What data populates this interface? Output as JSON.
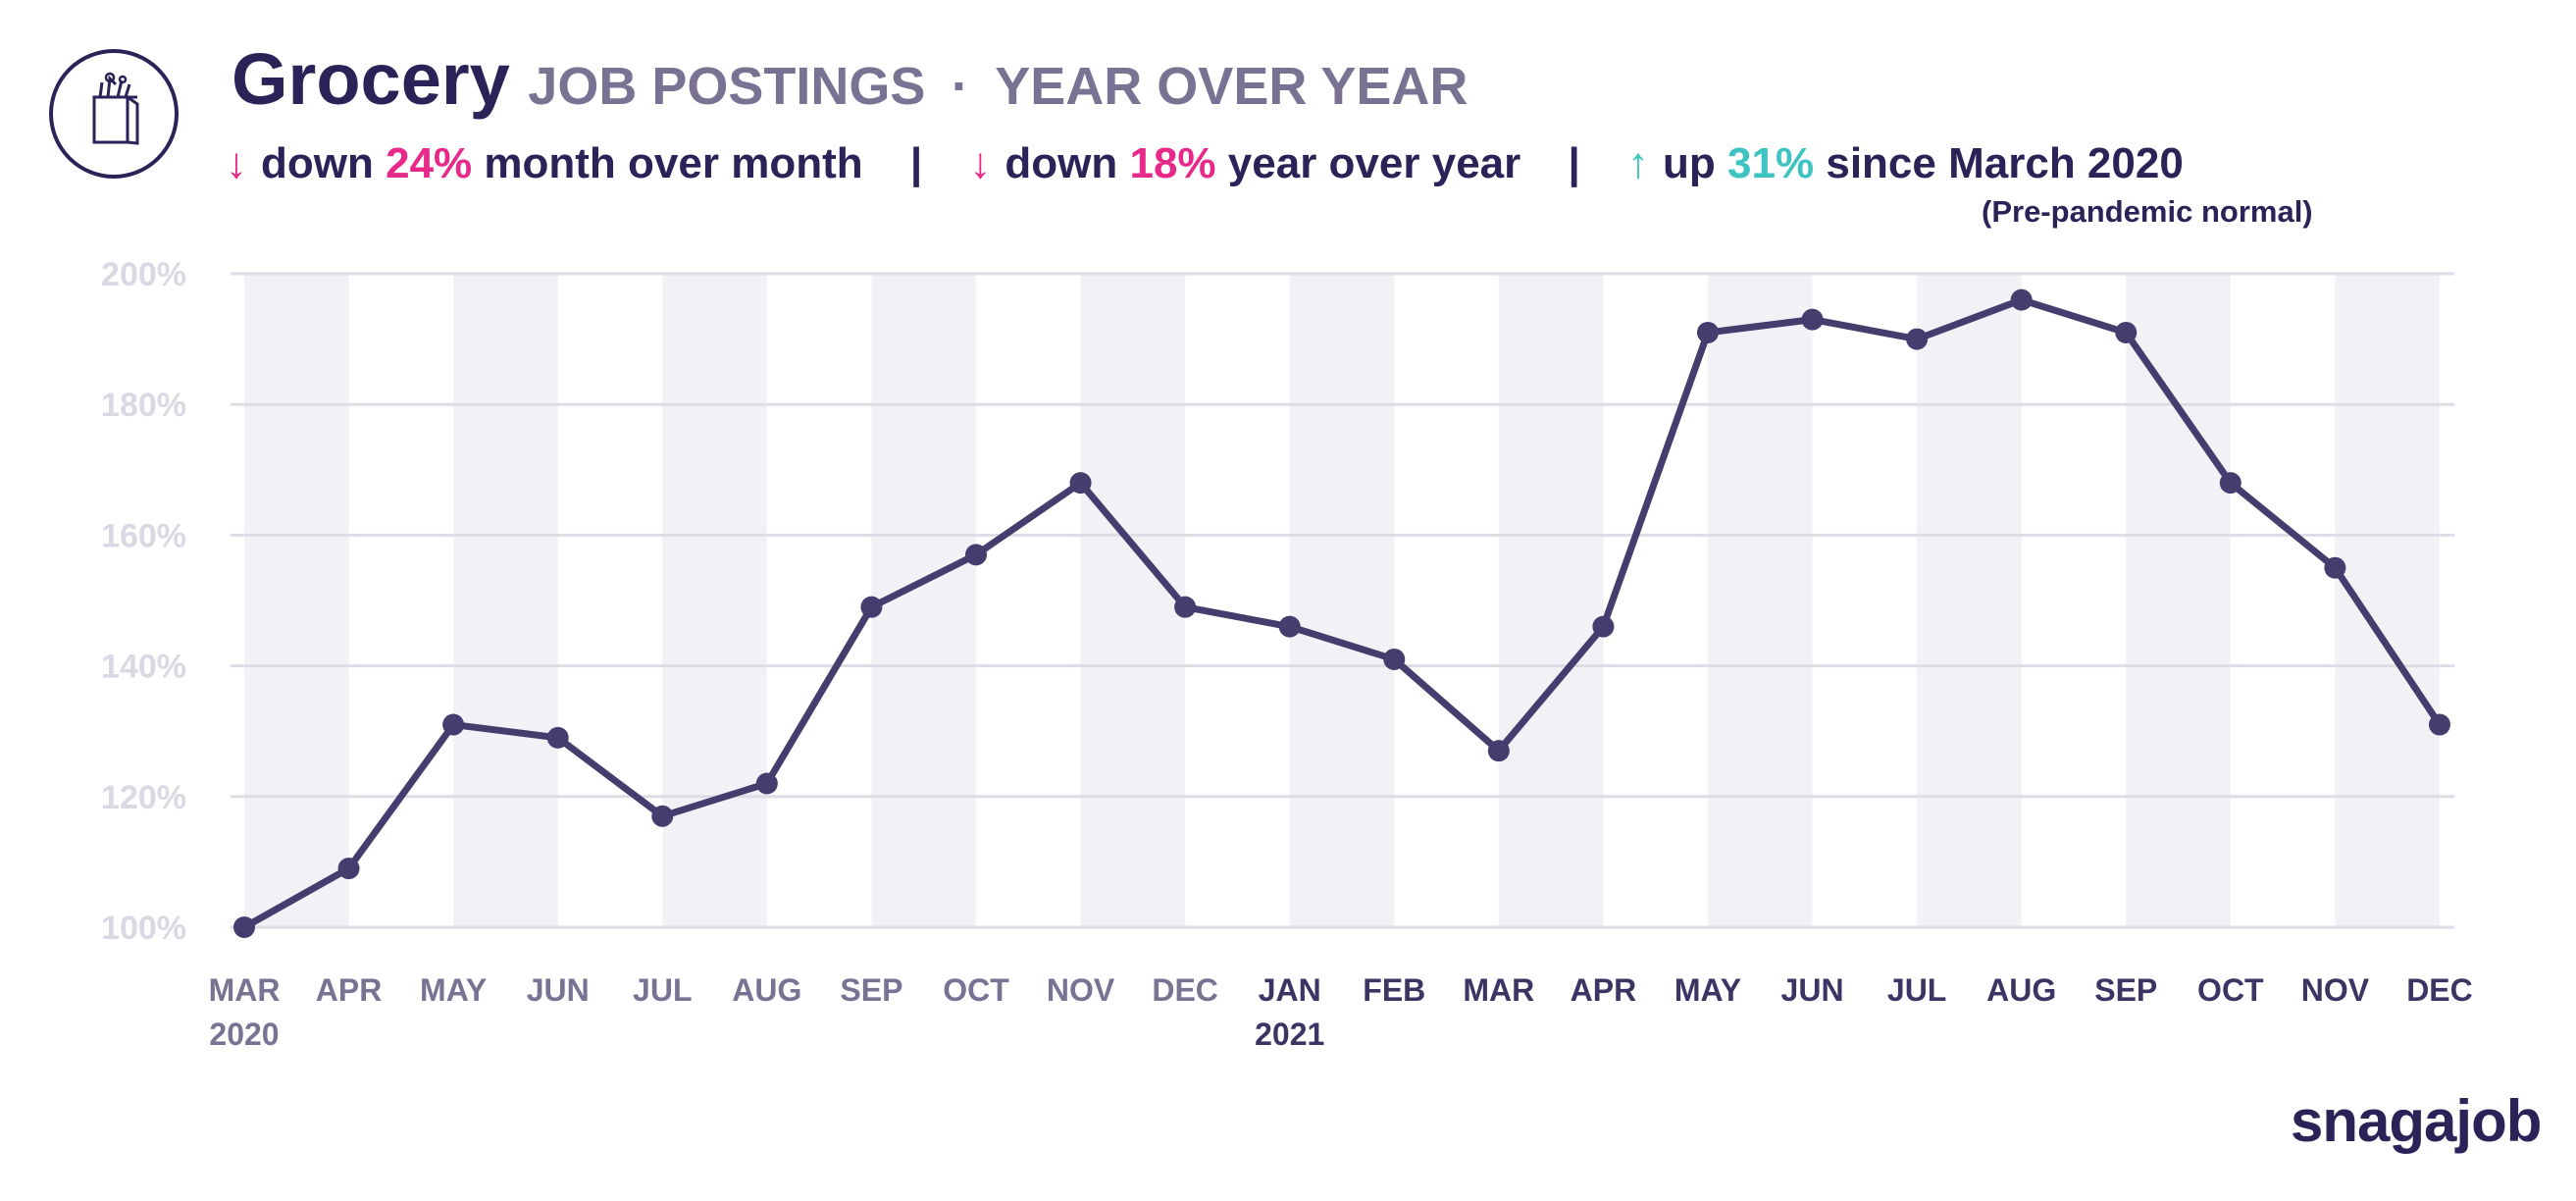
{
  "header": {
    "title": "Grocery",
    "subtitle_part1": "JOB POSTINGS",
    "separator": "·",
    "subtitle_part2": "YEAR OVER YEAR",
    "icon": "grocery-bag-icon"
  },
  "stats": [
    {
      "arrow": "↓",
      "prefix": "down",
      "value": "24%",
      "suffix": "month over month",
      "direction": "down"
    },
    {
      "arrow": "↓",
      "prefix": "down",
      "value": "18%",
      "suffix": "year over year",
      "direction": "down"
    },
    {
      "arrow": "↑",
      "prefix": "up",
      "value": "31%",
      "suffix": "since March 2020",
      "direction": "up"
    }
  ],
  "stats_divider": "|",
  "note": "(Pre-pandemic normal)",
  "brand": "snagajob",
  "colors": {
    "line": "#453d6e",
    "band": "#f2f1f6",
    "grid": "#dedde6",
    "tick_label_muted": "#7a7293",
    "tick_label_dark": "#3c3463",
    "y_tick_label": "#dad8e3",
    "down": "#e7298a",
    "up": "#3ec4c0",
    "navy": "#2b2358"
  },
  "chart_data": {
    "type": "line",
    "title": "",
    "xlabel": "",
    "ylabel": "",
    "categories": [
      "MAR",
      "APR",
      "MAY",
      "JUN",
      "JUL",
      "AUG",
      "SEP",
      "OCT",
      "NOV",
      "DEC",
      "JAN",
      "FEB",
      "MAR",
      "APR",
      "MAY",
      "JUN",
      "JUL",
      "AUG",
      "SEP",
      "OCT",
      "NOV",
      "DEC"
    ],
    "year_labels": [
      {
        "index": 0,
        "label": "2020"
      },
      {
        "index": 10,
        "label": "2021"
      }
    ],
    "series": [
      {
        "values": [
          100,
          109,
          131,
          129,
          117,
          122,
          149,
          157,
          168,
          149,
          146,
          141,
          127,
          146,
          191,
          193,
          190,
          196,
          191,
          168,
          155,
          131
        ]
      }
    ],
    "ylim": [
      100,
      200
    ],
    "yticks": [
      100,
      120,
      140,
      160,
      180,
      200
    ],
    "ytick_format": "{v}%",
    "grid": true,
    "alternating_bands": true,
    "legend": "none"
  }
}
